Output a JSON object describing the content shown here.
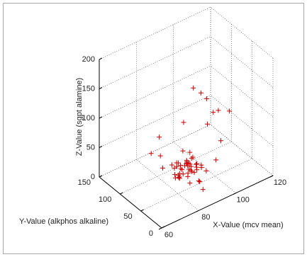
{
  "chart_data": {
    "type": "scatter3d",
    "x_label": "X-Value (mcv mean)",
    "y_label": "Y-Value (alkphos alkaline)",
    "z_label": "Z-Value (sgpt alamine)",
    "xlim": [
      60,
      120
    ],
    "xticks": [
      60,
      80,
      100,
      120
    ],
    "ylim": [
      0,
      150
    ],
    "yticks": [
      0,
      50,
      100,
      150
    ],
    "zlim": [
      0,
      200
    ],
    "zticks": [
      0,
      50,
      100,
      150,
      200
    ],
    "grid": true,
    "color": "#cc0000",
    "x": [
      85,
      88,
      82,
      90,
      86,
      84,
      92,
      87,
      89,
      83,
      91,
      86,
      88,
      85,
      84,
      90,
      93,
      87,
      82,
      89,
      86,
      88,
      91,
      85,
      83,
      87,
      90,
      84,
      86,
      89,
      92,
      88,
      85,
      87,
      81,
      94,
      86,
      83,
      90,
      88,
      95,
      100,
      98,
      104,
      92,
      80,
      78,
      85,
      97,
      102,
      75,
      88,
      96,
      99,
      83,
      86,
      110,
      93,
      89,
      79
    ],
    "y": [
      60,
      55,
      65,
      50,
      70,
      62,
      58,
      48,
      66,
      72,
      54,
      45,
      62,
      75,
      58,
      68,
      52,
      60,
      55,
      40,
      80,
      64,
      70,
      52,
      60,
      42,
      62,
      66,
      56,
      74,
      60,
      50,
      68,
      58,
      62,
      56,
      48,
      78,
      66,
      60,
      80,
      70,
      75,
      60,
      90,
      95,
      40,
      20,
      55,
      45,
      70,
      85,
      30,
      50,
      100,
      65,
      60,
      40,
      30,
      110
    ],
    "z": [
      20,
      25,
      15,
      30,
      22,
      35,
      18,
      28,
      12,
      26,
      32,
      40,
      10,
      24,
      30,
      16,
      28,
      36,
      20,
      14,
      26,
      34,
      22,
      42,
      18,
      30,
      38,
      12,
      44,
      20,
      26,
      50,
      16,
      32,
      24,
      20,
      10,
      28,
      46,
      34,
      140,
      120,
      130,
      100,
      80,
      70,
      40,
      30,
      90,
      60,
      60,
      20,
      45,
      110,
      10,
      55,
      90,
      25,
      5,
      35
    ]
  }
}
